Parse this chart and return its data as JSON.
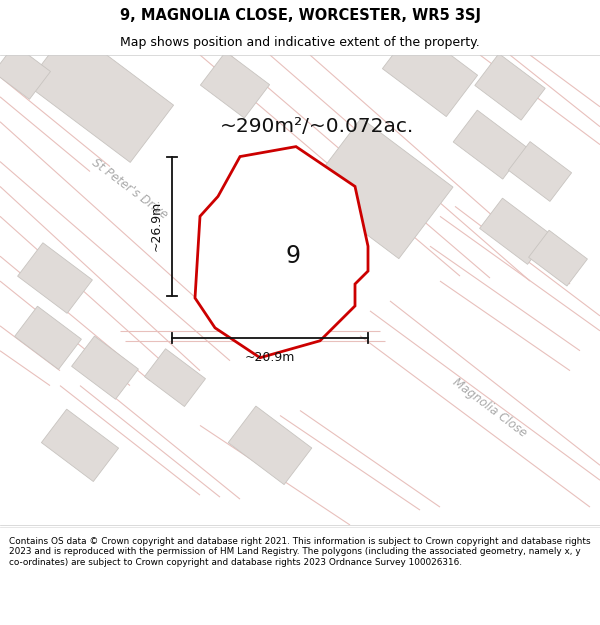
{
  "title": "9, MAGNOLIA CLOSE, WORCESTER, WR5 3SJ",
  "subtitle": "Map shows position and indicative extent of the property.",
  "area_text": "~290m²/~0.072ac.",
  "width_text": "~20.9m",
  "height_text": "~26.9m",
  "property_number": "9",
  "footer": "Contains OS data © Crown copyright and database right 2021. This information is subject to Crown copyright and database rights 2023 and is reproduced with the permission of HM Land Registry. The polygons (including the associated geometry, namely x, y co-ordinates) are subject to Crown copyright and database rights 2023 Ordnance Survey 100026316.",
  "map_bg": "#f7f5f3",
  "property_fill": "#ffffff",
  "property_edge": "#cc0000",
  "road_thin_color": "#e8c0bc",
  "road_medium_color": "#ddb8b4",
  "building_fill": "#e0dbd8",
  "building_edge": "#c8c4c0",
  "dim_color": "#111111",
  "label_color": "#aaaaaa",
  "title_fs": 10.5,
  "subtitle_fs": 9.0,
  "area_fs": 14.5,
  "dim_fs": 9.0,
  "road_label_fs": 8.5,
  "number_fs": 17
}
